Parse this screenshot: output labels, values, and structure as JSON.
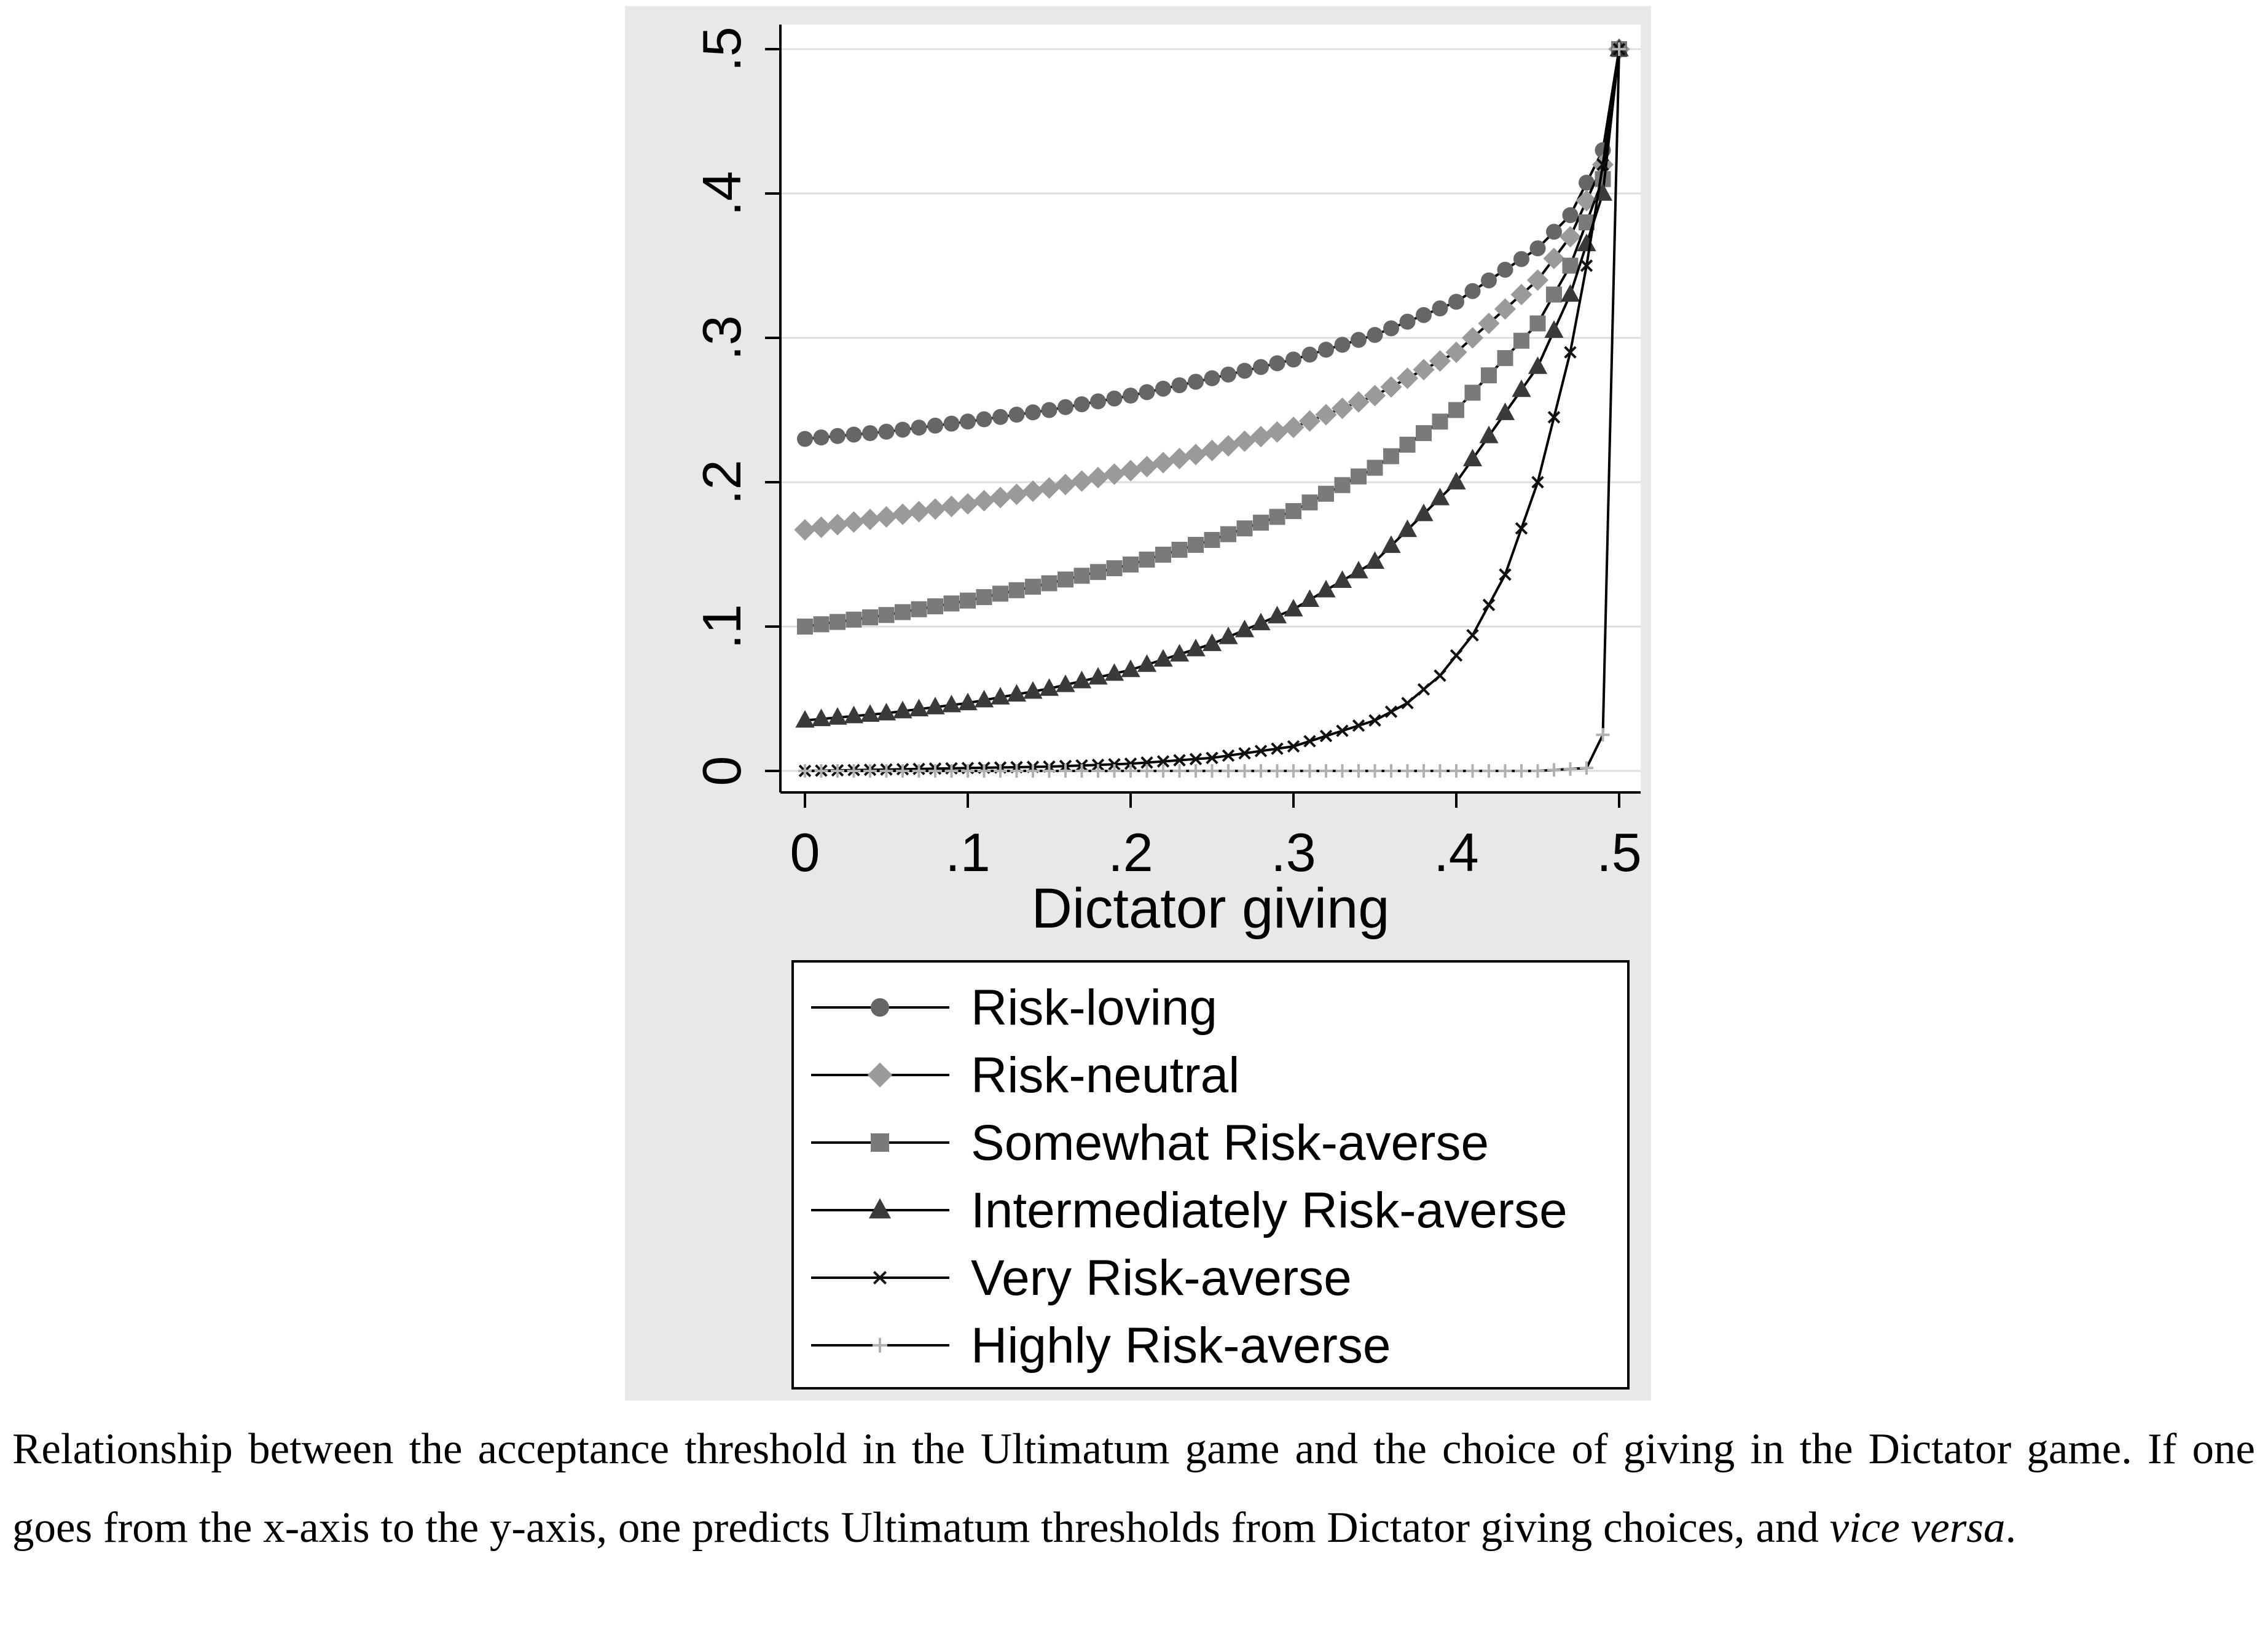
{
  "chart_data": {
    "type": "line",
    "title": "",
    "xlabel": "Dictator giving",
    "ylabel": "",
    "xlim": [
      0,
      0.5
    ],
    "ylim": [
      0,
      0.5
    ],
    "x_ticks": [
      "0",
      ".1",
      ".2",
      ".3",
      ".4",
      ".5"
    ],
    "y_ticks": [
      "0",
      ".1",
      ".2",
      ".3",
      ".4",
      ".5"
    ],
    "grid": "horizontal",
    "legend_position": "bottom",
    "colors": {
      "background": "#e8e8e8",
      "plot": "#ffffff",
      "risk_loving": "#666666",
      "risk_neutral": "#9a9a9a",
      "somewhat": "#7a7a7a",
      "intermediately": "#3a3a3a",
      "very": "#111111",
      "highly": "#b0b0b0"
    },
    "series": [
      {
        "name": "Risk-loving",
        "marker": "circle",
        "x": [
          0,
          0.05,
          0.1,
          0.15,
          0.2,
          0.25,
          0.3,
          0.35,
          0.4,
          0.45,
          0.47,
          0.49,
          0.5
        ],
        "y": [
          0.23,
          0.235,
          0.242,
          0.25,
          0.26,
          0.272,
          0.285,
          0.302,
          0.325,
          0.362,
          0.385,
          0.43,
          0.5
        ]
      },
      {
        "name": "Risk-neutral",
        "marker": "diamond",
        "x": [
          0,
          0.05,
          0.1,
          0.15,
          0.2,
          0.25,
          0.3,
          0.35,
          0.4,
          0.45,
          0.47,
          0.49,
          0.5
        ],
        "y": [
          0.167,
          0.176,
          0.185,
          0.196,
          0.208,
          0.222,
          0.238,
          0.26,
          0.29,
          0.34,
          0.37,
          0.42,
          0.5
        ]
      },
      {
        "name": "Somewhat Risk-averse",
        "marker": "square",
        "x": [
          0,
          0.05,
          0.1,
          0.15,
          0.2,
          0.25,
          0.3,
          0.35,
          0.4,
          0.45,
          0.47,
          0.49,
          0.5
        ],
        "y": [
          0.1,
          0.108,
          0.118,
          0.13,
          0.143,
          0.16,
          0.18,
          0.21,
          0.25,
          0.31,
          0.35,
          0.41,
          0.5
        ]
      },
      {
        "name": "Intermediately Risk-averse",
        "marker": "triangle",
        "x": [
          0,
          0.05,
          0.1,
          0.15,
          0.2,
          0.25,
          0.3,
          0.35,
          0.4,
          0.45,
          0.47,
          0.49,
          0.5
        ],
        "y": [
          0.035,
          0.04,
          0.047,
          0.057,
          0.07,
          0.088,
          0.112,
          0.145,
          0.2,
          0.28,
          0.33,
          0.4,
          0.5
        ]
      },
      {
        "name": "Very Risk-averse",
        "marker": "x",
        "x": [
          0,
          0.05,
          0.1,
          0.15,
          0.2,
          0.25,
          0.3,
          0.35,
          0.37,
          0.39,
          0.41,
          0.43,
          0.45,
          0.47,
          0.48,
          0.49,
          0.5
        ],
        "y": [
          0.0,
          0.001,
          0.002,
          0.003,
          0.005,
          0.009,
          0.017,
          0.035,
          0.047,
          0.066,
          0.094,
          0.136,
          0.2,
          0.29,
          0.35,
          0.42,
          0.5
        ]
      },
      {
        "name": "Highly Risk-averse",
        "marker": "plus",
        "x": [
          0,
          0.05,
          0.1,
          0.15,
          0.2,
          0.25,
          0.3,
          0.35,
          0.4,
          0.45,
          0.48,
          0.49,
          0.5
        ],
        "y": [
          0,
          0,
          0,
          0,
          0,
          0,
          0,
          0,
          0,
          0,
          0.002,
          0.025,
          0.5
        ]
      }
    ]
  },
  "caption": {
    "text_main": "Relationship between the acceptance threshold in the Ultimatum game and the choice of giving in the Dictator game. If one goes from the x-axis to the y-axis, one predicts Ultimatum thresholds from Dictator giving choices, and ",
    "text_italic": "vice versa",
    "text_end": "."
  }
}
